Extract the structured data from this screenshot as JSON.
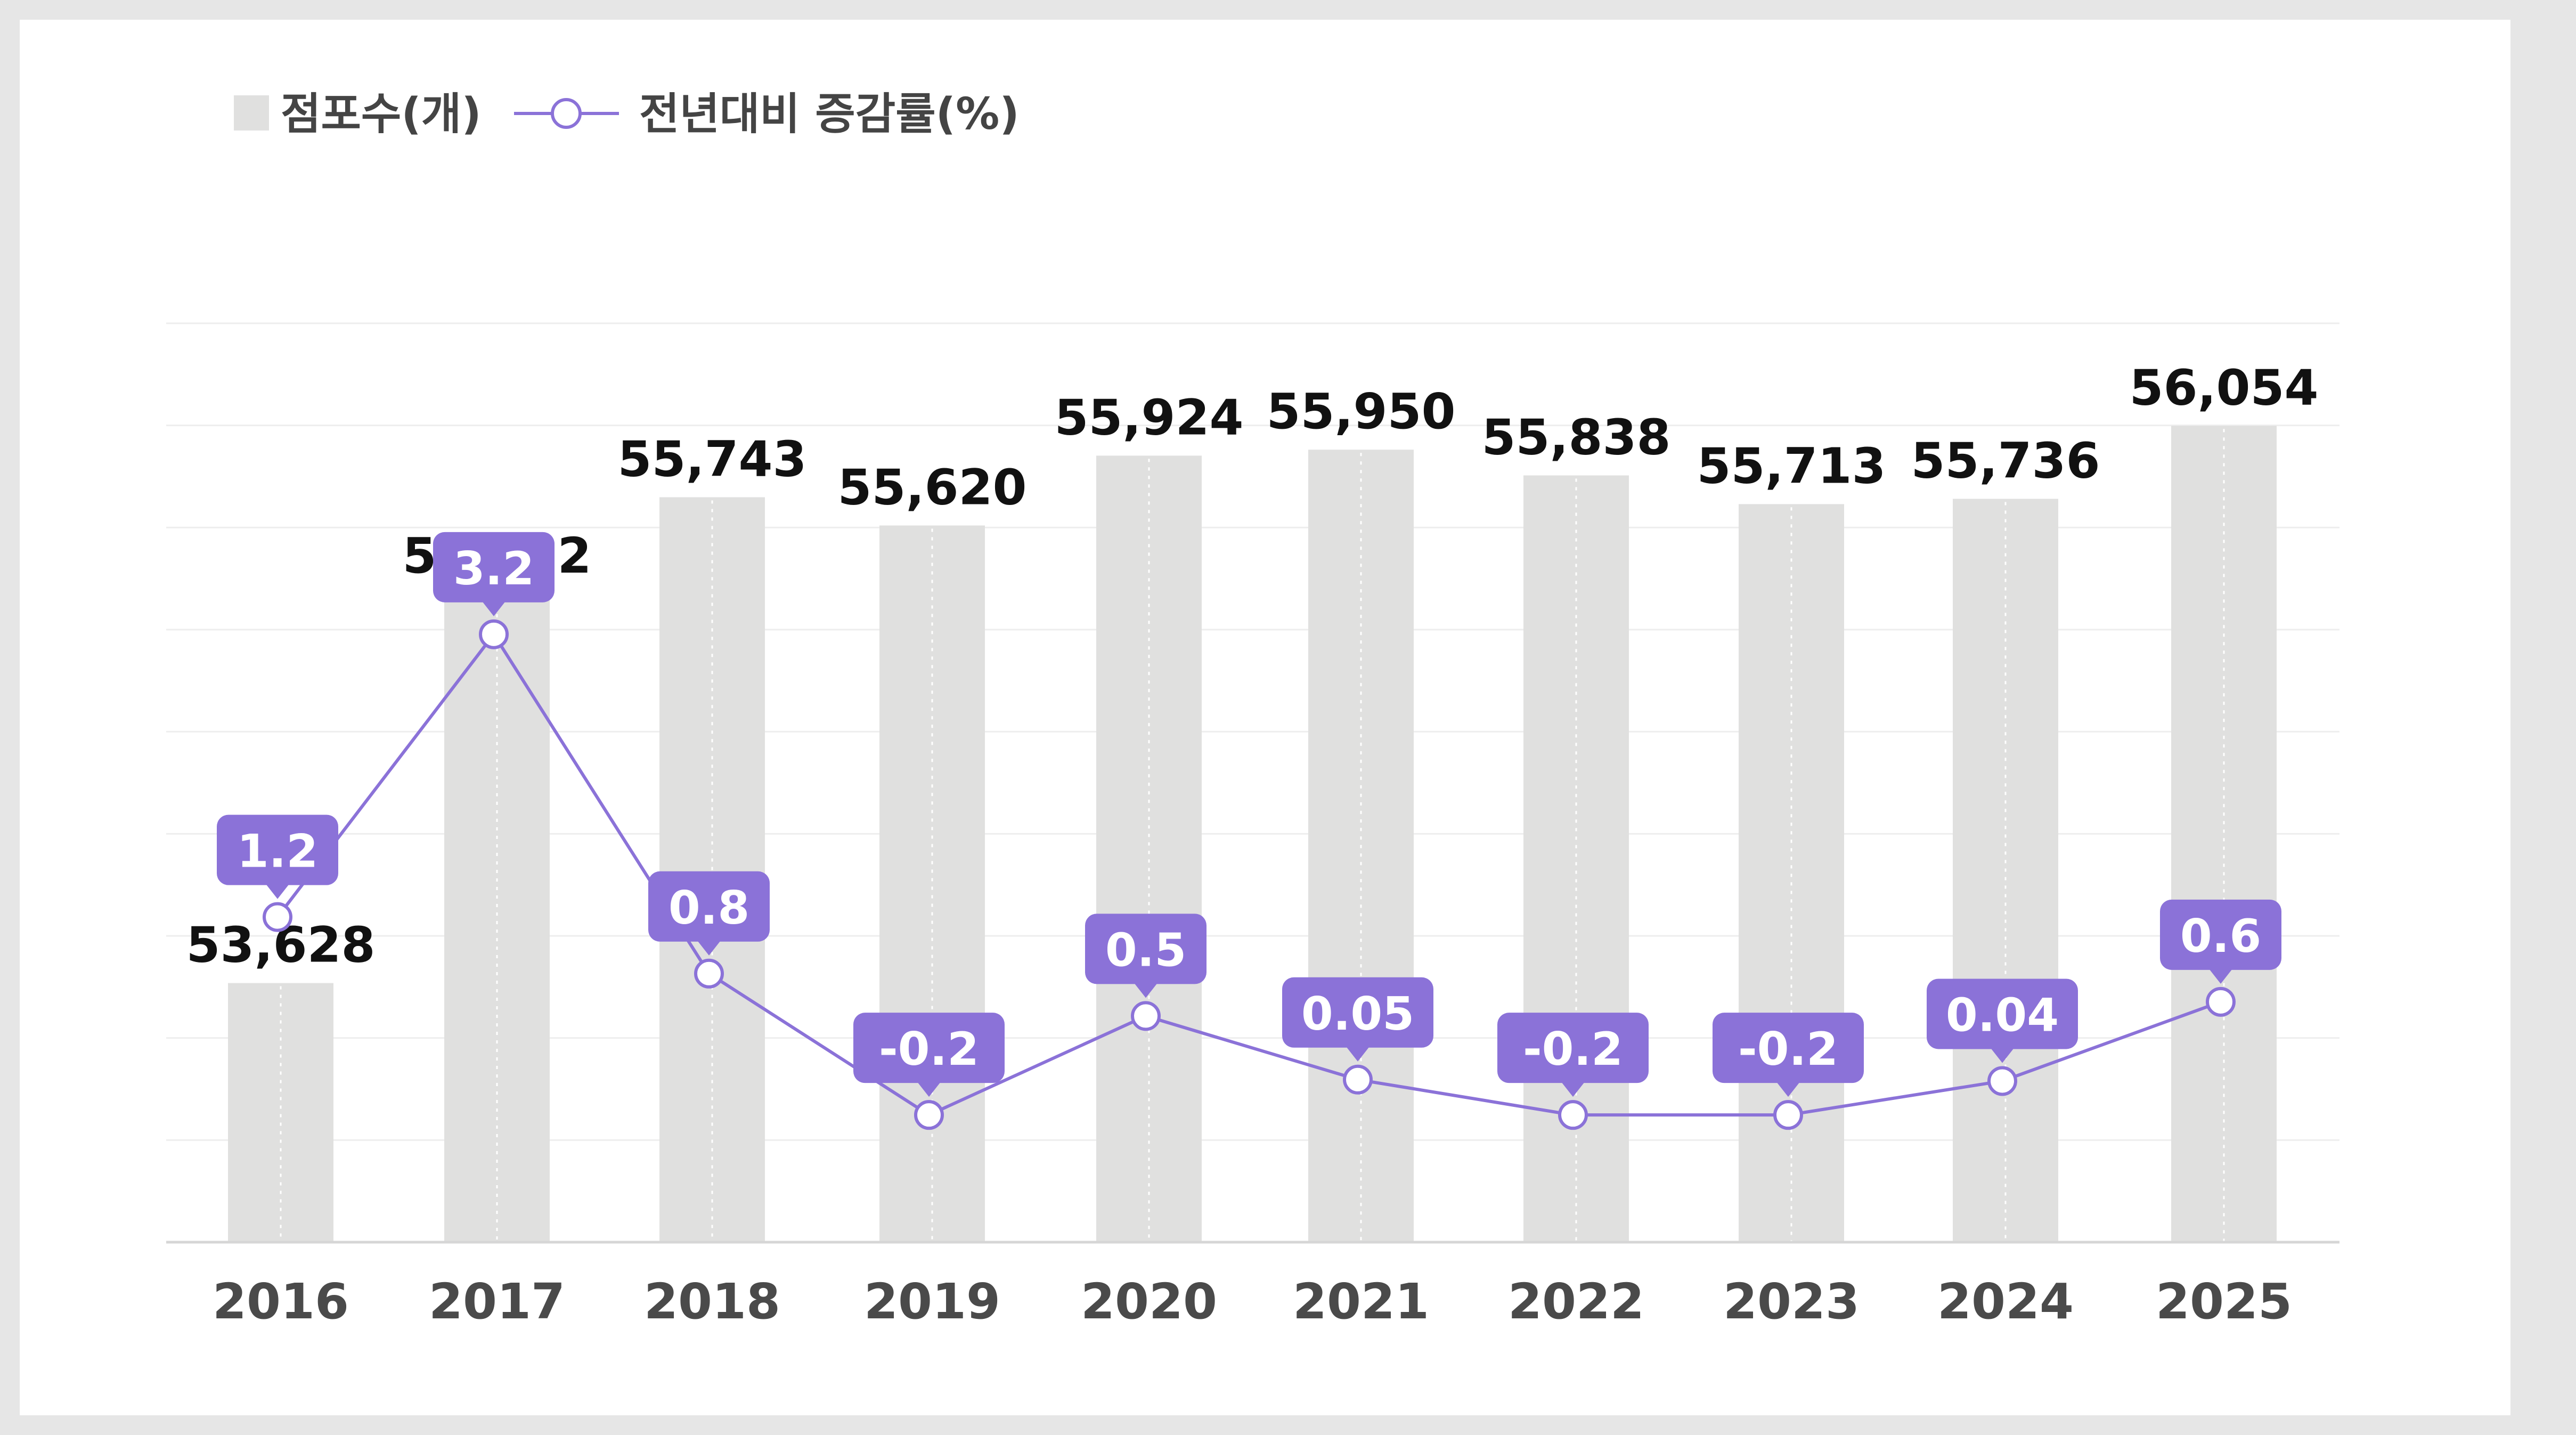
{
  "legend": {
    "bars_label": "점포수(개)",
    "line_label": "전년대비 증감률(%)"
  },
  "colors": {
    "bar": "#e0e0df",
    "line": "#8b72d8",
    "tooltip_bg": "#8b72d8",
    "grid": "#eeeeee",
    "axis": "#d6d6d6"
  },
  "chart_data": {
    "type": "bar",
    "categories": [
      "2016",
      "2017",
      "2018",
      "2019",
      "2020",
      "2021",
      "2022",
      "2023",
      "2024",
      "2025"
    ],
    "series": [
      {
        "name": "점포수(개)",
        "type": "bar",
        "values": [
          53628,
          55322,
          55743,
          55620,
          55924,
          55950,
          55838,
          55713,
          55736,
          56054
        ],
        "labels": [
          "53,628",
          "55,322",
          "55,743",
          "55,620",
          "55,924",
          "55,950",
          "55,838",
          "55,713",
          "55,736",
          "56,054"
        ]
      },
      {
        "name": "전년대비 증감률(%)",
        "type": "line",
        "values": [
          1.2,
          3.2,
          0.8,
          -0.2,
          0.5,
          0.05,
          -0.2,
          -0.2,
          0.04,
          0.6
        ],
        "labels": [
          "1.2",
          "3.2",
          "0.8",
          "-0.2",
          "0.5",
          "0.05",
          "-0.2",
          "-0.2",
          "0.04",
          "0.6"
        ]
      }
    ],
    "bar_ylim": [
      52500,
      56500
    ],
    "line_ylim": [
      -1.1,
      5.4
    ],
    "grid": true,
    "legend_position": "top-left",
    "title": "",
    "xlabel": "",
    "ylabel": ""
  }
}
